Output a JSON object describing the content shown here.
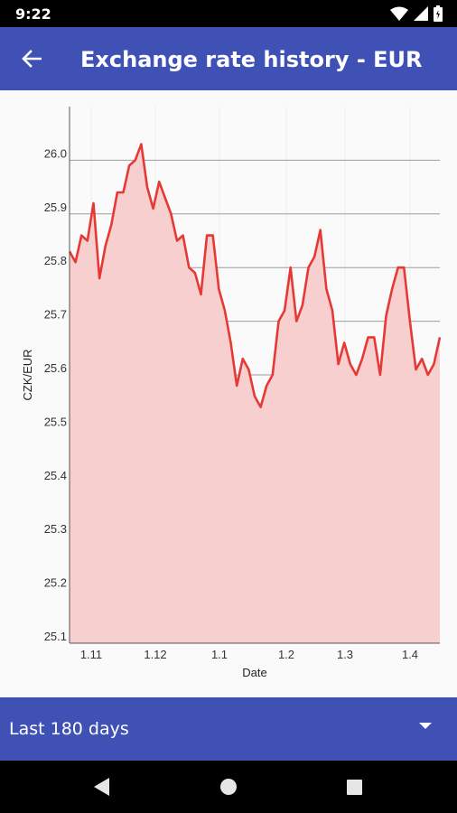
{
  "status_bar": {
    "time": "9:22"
  },
  "app_bar": {
    "title": "Exchange rate history - EUR"
  },
  "range_selector": {
    "selected": "Last 180 days"
  },
  "colors": {
    "primary": "#3f51b5",
    "line": "#e53935",
    "fill": "#f8cfcf"
  },
  "icons": {
    "back": "arrow-left-icon",
    "dropdown": "triangle-down-icon"
  },
  "chart_data": {
    "type": "area",
    "title": "",
    "xlabel": "Date",
    "ylabel": "CZK/EUR",
    "ylim": [
      25.1,
      26.1
    ],
    "yticks": [
      25.1,
      25.2,
      25.3,
      25.4,
      25.5,
      25.6,
      25.7,
      25.8,
      25.9,
      26.0
    ],
    "ytick_labels": [
      "25.1",
      "25.2",
      "25.3",
      "25.4",
      "25.5",
      "25.6",
      "25.7",
      "25.8",
      "25.9",
      "26.0"
    ],
    "xticks": [
      "1.11",
      "1.12",
      "1.1",
      "1.2",
      "1.3",
      "1.4"
    ],
    "grid": true,
    "series": [
      {
        "values": [
          25.83,
          25.81,
          25.86,
          25.85,
          25.92,
          25.78,
          25.84,
          25.88,
          25.94,
          25.94,
          25.99,
          26.0,
          26.03,
          25.95,
          25.91,
          25.96,
          25.93,
          25.9,
          25.85,
          25.86,
          25.8,
          25.79,
          25.75,
          25.86,
          25.86,
          25.76,
          25.72,
          25.66,
          25.58,
          25.63,
          25.61,
          25.56,
          25.54,
          25.58,
          25.6,
          25.7,
          25.72,
          25.8,
          25.7,
          25.73,
          25.8,
          25.82,
          25.87,
          25.76,
          25.72,
          25.62,
          25.66,
          25.62,
          25.6,
          25.63,
          25.67,
          25.67,
          25.6,
          25.71,
          25.76,
          25.8,
          25.8,
          25.7,
          25.61,
          25.63,
          25.6,
          25.62,
          25.67
        ]
      }
    ]
  }
}
